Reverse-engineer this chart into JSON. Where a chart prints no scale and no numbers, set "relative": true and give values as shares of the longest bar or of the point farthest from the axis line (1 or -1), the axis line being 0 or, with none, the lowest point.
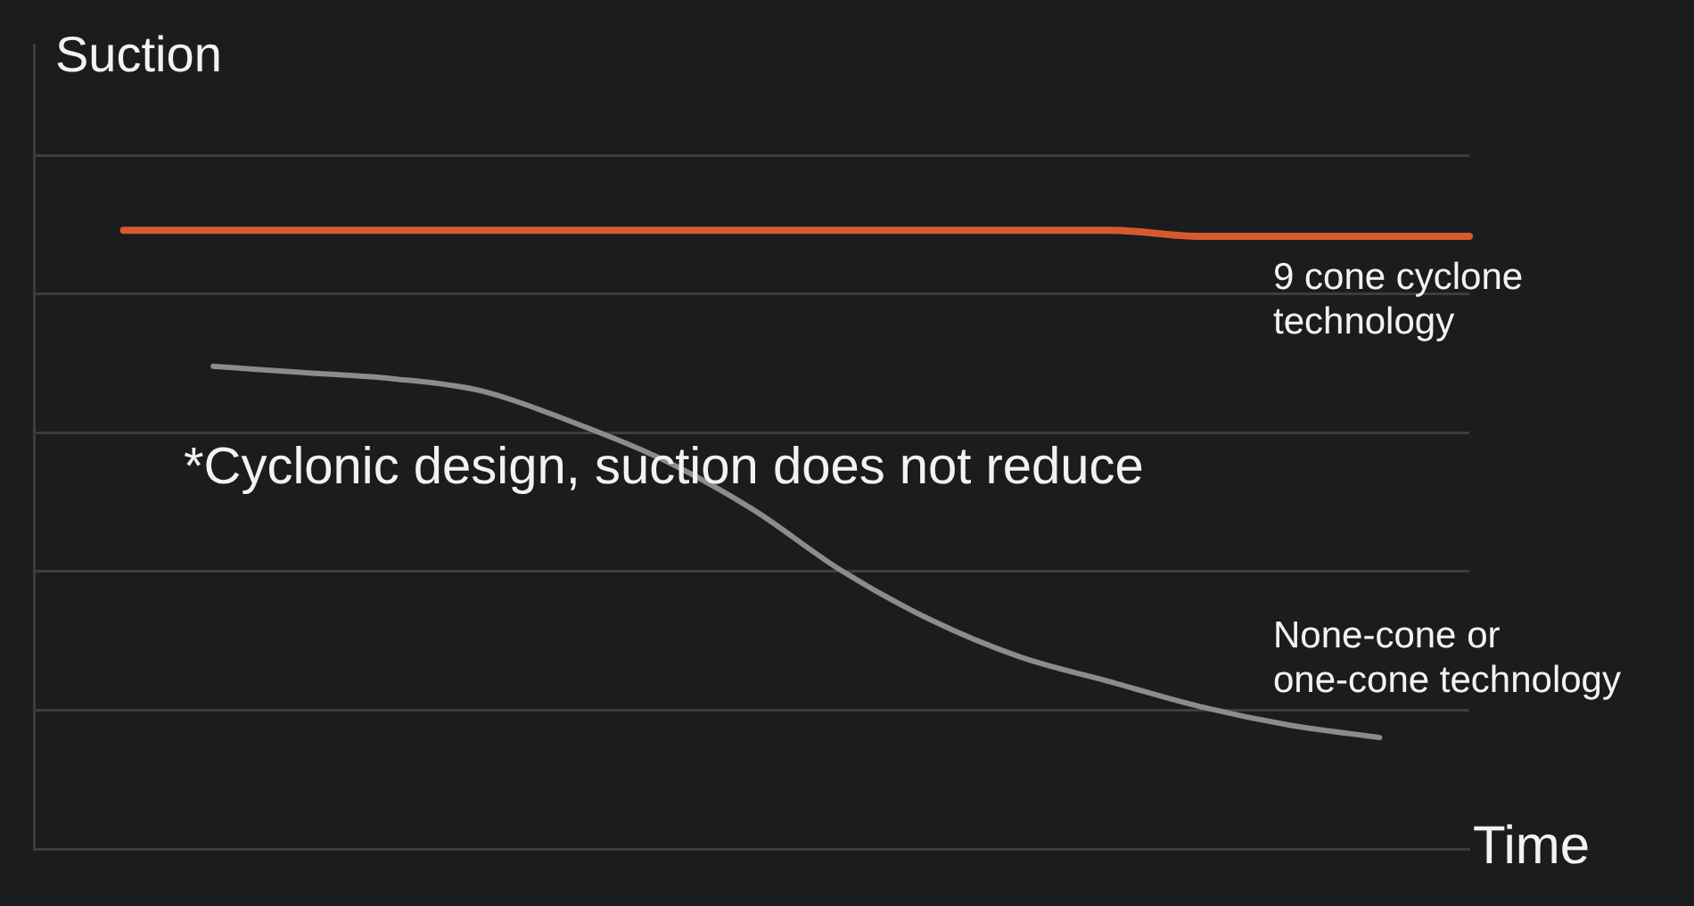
{
  "chart_data": {
    "type": "line",
    "xlabel": "Time",
    "ylabel": "Suction",
    "annotations": [
      "*Cyclonic design, suction does not reduce"
    ],
    "categories": [
      null,
      null,
      null,
      null,
      null,
      null,
      null,
      null,
      null,
      null,
      null,
      null,
      null,
      null,
      null,
      null,
      null
    ],
    "relative": true,
    "grid": "y",
    "legend": false,
    "marker": "none",
    "line_style": "solid",
    "series": [
      {
        "name": "9 cone cyclone technology",
        "color": "#d9592e",
        "values": [
          null,
          1,
          1,
          1,
          1,
          1,
          1,
          1,
          1,
          1,
          1,
          1,
          1,
          0.99,
          0.99,
          0.99,
          0.99
        ]
      },
      {
        "name": "None-cone or one-cone technology",
        "color": "#8c8c8c",
        "values": [
          null,
          null,
          0.78,
          0.77,
          0.76,
          0.74,
          0.69,
          0.63,
          0.55,
          0.45,
          0.37,
          0.31,
          0.27,
          0.23,
          0.2,
          0.18,
          null
        ]
      }
    ]
  }
}
